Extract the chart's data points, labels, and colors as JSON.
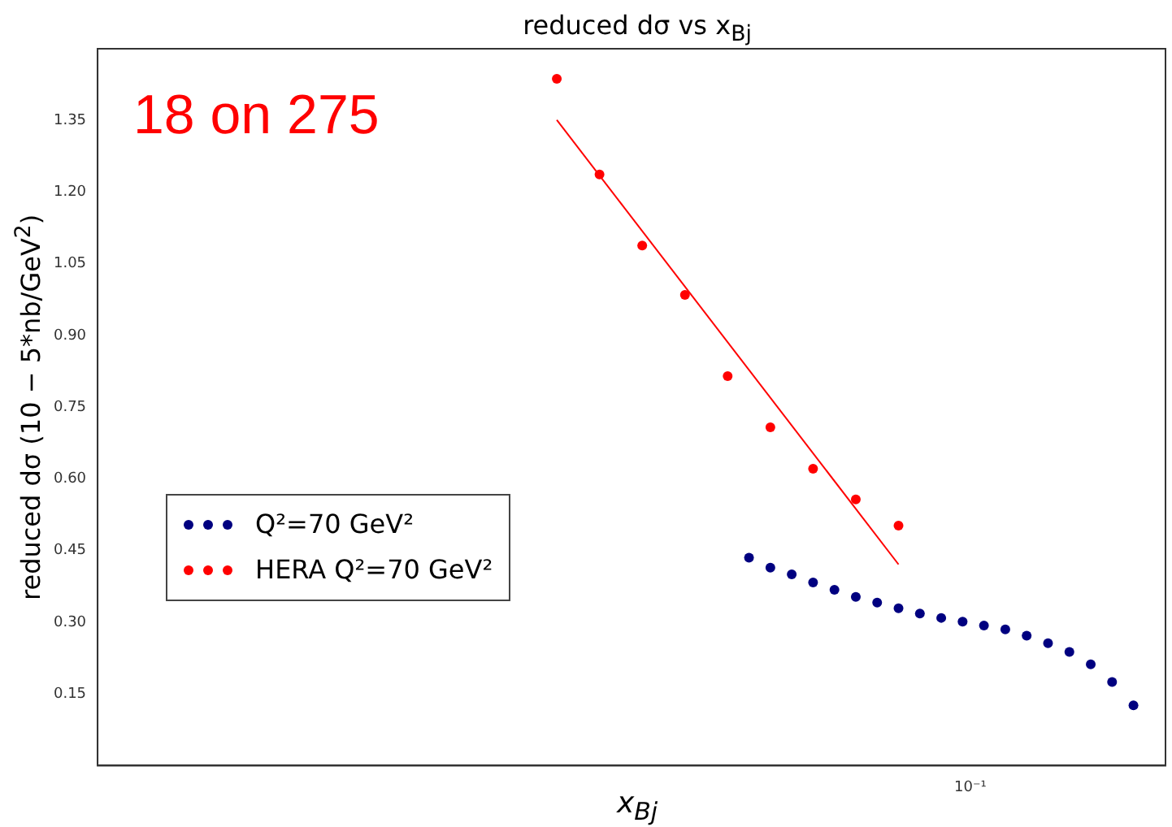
{
  "chart_data": {
    "type": "scatter",
    "title": "reduced dσ vs x$_{Bj}$",
    "xlabel": "x$_{Bj}$",
    "ylabel": "reduced dσ (10 − 5*nb/GeV$^{2}$)",
    "annotations": [
      "18 on 275",
      "10⁻¹"
    ],
    "grid": false,
    "legend": "center left",
    "marker": "circle",
    "categories": [
      null,
      null,
      null,
      null,
      null,
      null,
      null,
      null,
      null,
      null,
      null,
      null,
      null,
      null,
      null,
      null,
      null,
      null,
      null,
      null,
      null,
      null,
      null,
      null,
      null,
      null,
      null,
      null,
      null,
      null,
      null,
      null,
      null,
      null,
      null,
      null,
      null,
      null,
      null,
      null,
      null,
      null,
      null,
      null,
      null,
      null,
      null,
      null,
      null,
      null
    ],
    "ylim": [
      0,
      1.5
    ],
    "yticks": [
      {
        "value": 0.15,
        "label": "0.15"
      },
      {
        "value": 0.3,
        "label": "0.30"
      },
      {
        "value": 0.45,
        "label": "0.45"
      },
      {
        "value": 0.6,
        "label": "0.60"
      },
      {
        "value": 0.75,
        "label": "0.75"
      },
      {
        "value": 0.9,
        "label": "0.90"
      },
      {
        "value": 1.05,
        "label": "1.05"
      },
      {
        "value": 1.2,
        "label": "1.20"
      },
      {
        "value": 1.35,
        "label": "1.35"
      }
    ],
    "series": [
      {
        "name": "Q²=70 GeV²",
        "color": "#000080",
        "values": [
          null,
          null,
          null,
          null,
          null,
          null,
          null,
          null,
          null,
          null,
          null,
          null,
          null,
          null,
          null,
          null,
          null,
          null,
          null,
          null,
          null,
          null,
          null,
          null,
          null,
          null,
          null,
          null,
          null,
          null,
          0.435,
          0.414,
          0.4,
          0.383,
          0.368,
          0.353,
          0.341,
          0.329,
          0.318,
          0.309,
          0.301,
          0.293,
          0.285,
          0.272,
          0.256,
          0.238,
          0.212,
          0.175,
          0.126,
          null
        ]
      },
      {
        "name": "HERA Q²=70 GeV²",
        "color": "#ff0000",
        "values": [
          null,
          null,
          null,
          null,
          null,
          null,
          null,
          null,
          null,
          null,
          null,
          null,
          null,
          null,
          null,
          null,
          null,
          null,
          null,
          null,
          null,
          1.437,
          null,
          1.237,
          null,
          1.088,
          null,
          0.985,
          null,
          0.815,
          null,
          0.708,
          null,
          0.621,
          null,
          0.557,
          null,
          0.502,
          null,
          null,
          null,
          null,
          null,
          null,
          null,
          null,
          null,
          null,
          null,
          null
        ]
      },
      {
        "type": "line",
        "marker": "none",
        "color": "#ff0000",
        "values": [
          null,
          null,
          null,
          null,
          null,
          null,
          null,
          null,
          null,
          null,
          null,
          null,
          null,
          null,
          null,
          null,
          null,
          null,
          null,
          null,
          null,
          1.351,
          null,
          null,
          null,
          null,
          null,
          null,
          null,
          null,
          null,
          null,
          null,
          null,
          null,
          null,
          null,
          0.421,
          null,
          null,
          null,
          null,
          null,
          null,
          null,
          null,
          null,
          null,
          null,
          null
        ]
      }
    ]
  }
}
